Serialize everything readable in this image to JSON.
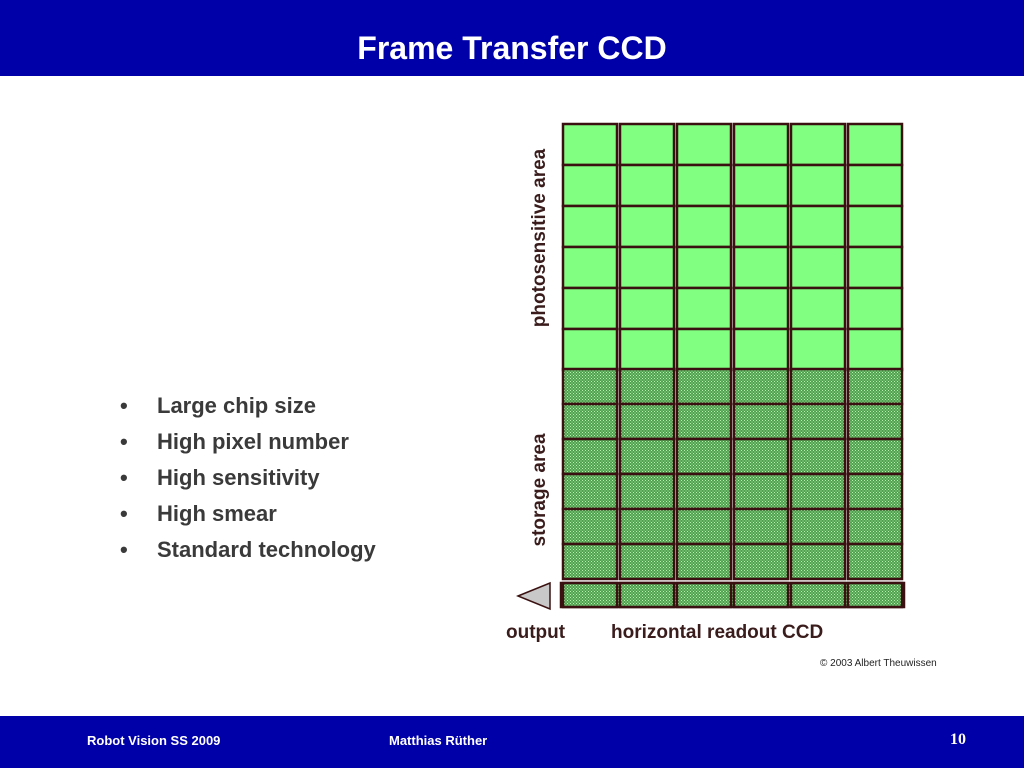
{
  "slide": {
    "title": "Frame Transfer CCD",
    "bullets": [
      "Large chip size",
      "High pixel number",
      "High sensitivity",
      "High smear",
      "Standard technology"
    ]
  },
  "diagram": {
    "photosensitive_label": "photosensitive area",
    "storage_label": "storage area",
    "output_label": "output",
    "readout_label": "horizontal readout CCD",
    "columns": 6,
    "photosensitive_rows": 6,
    "storage_rows": 6,
    "photosensitive_color": "#80ff80",
    "storage_color": "#4fa04f",
    "grid_line_color": "#3a1010",
    "output_arrow_color": "#c8c8c8"
  },
  "credit": "© 2003 Albert Theuwissen",
  "footer": {
    "left": "Robot Vision SS 2009",
    "center": "Matthias Rüther",
    "page": "10"
  },
  "colors": {
    "bar": "#0000a8",
    "bar_text": "#ffffff",
    "bullet_text": "#3a3a3a"
  }
}
